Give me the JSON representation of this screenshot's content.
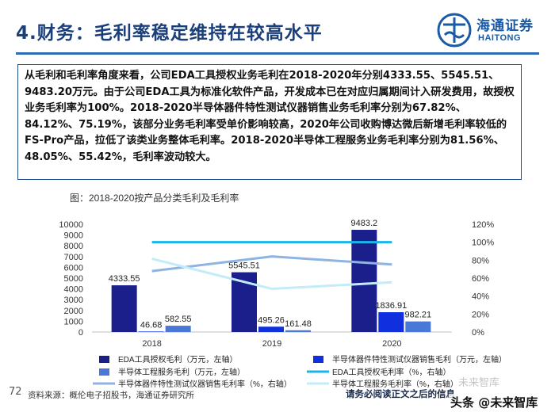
{
  "page": {
    "title": "4.财务：毛利率稳定维持在较高水平",
    "logo_cn": "海通证券",
    "logo_en": "HAITONG",
    "summary_paragraph": "从毛利和毛利率角度来看，公司EDA工具授权业务毛利在2018-2020年分别4333.55、5545.51、9483.20万元。由于公司EDA工具为标准化软件产品，开发成本已在对应归属期间计入研发费用，故授权业务毛利率为100%。2018-2020半导体器件特性测试仪器销售业务毛利率分别为67.82%、84.12%、75.19%，该部分业务毛利率受单价影响较高，2020年公司收购博达微后新增毛利率较低的FS-Pro产品，拉低了该类业务整体毛利率。2018-2020半导体工程服务业务毛利率分别为81.56%、48.05%、55.42%，毛利率波动较大。",
    "figure_caption": "图：2018-2020按产品分类毛利及毛利率",
    "page_number": "72",
    "source_note": "资料来源：概伦电子招股书，海通证券研究所",
    "disclaimer": "请务必阅读正文之后的信息",
    "watermark_top": "未来智库",
    "watermark_bottom": "头条 @未来智库"
  },
  "chart_data": {
    "type": "bar",
    "categories": [
      "2018",
      "2019",
      "2020"
    ],
    "left_axis": {
      "min": 0,
      "max": 10000,
      "ticks": [
        "0",
        "1000",
        "2000",
        "3000",
        "4000",
        "5000",
        "6000",
        "7000",
        "8000",
        "9000",
        "10000"
      ]
    },
    "right_axis": {
      "min": 0,
      "max": 1.2,
      "ticks": [
        "0%",
        "20%",
        "40%",
        "60%",
        "80%",
        "100%",
        "120%"
      ]
    },
    "bar_series": [
      {
        "name": "EDA工具授权毛利（万元，左轴）",
        "color": "#1b1f8c",
        "values": [
          4333.55,
          5545.51,
          9483.2
        ],
        "labels": [
          "4333.55",
          "5545.51",
          "9483.2"
        ]
      },
      {
        "name": "半导体器件特性测试仪器销售毛利（万元，左轴）",
        "color": "#1030e0",
        "values": [
          46.68,
          495.26,
          1836.91
        ],
        "labels": [
          "46.68",
          "495.26",
          "1836.91"
        ]
      },
      {
        "name": "半导体工程服务毛利（万元，左轴）",
        "color": "#4a78d8",
        "values": [
          582.55,
          161.48,
          982.21
        ],
        "labels": [
          "582.55",
          "161.48",
          "982.21"
        ]
      }
    ],
    "line_series": [
      {
        "name": "EDA工具授权毛利率（%，右轴）",
        "color": "#19b6ea",
        "values": [
          1.0,
          1.0,
          1.0
        ]
      },
      {
        "name": "半导体器件特性测试仪器销售毛利率（%，右轴）",
        "color": "#8fb3e3",
        "values": [
          0.6782,
          0.8412,
          0.7519
        ]
      },
      {
        "name": "半导体工程服务毛利率（%，右轴）",
        "color": "#c2ecfa",
        "values": [
          0.8156,
          0.4805,
          0.5542
        ]
      }
    ]
  }
}
